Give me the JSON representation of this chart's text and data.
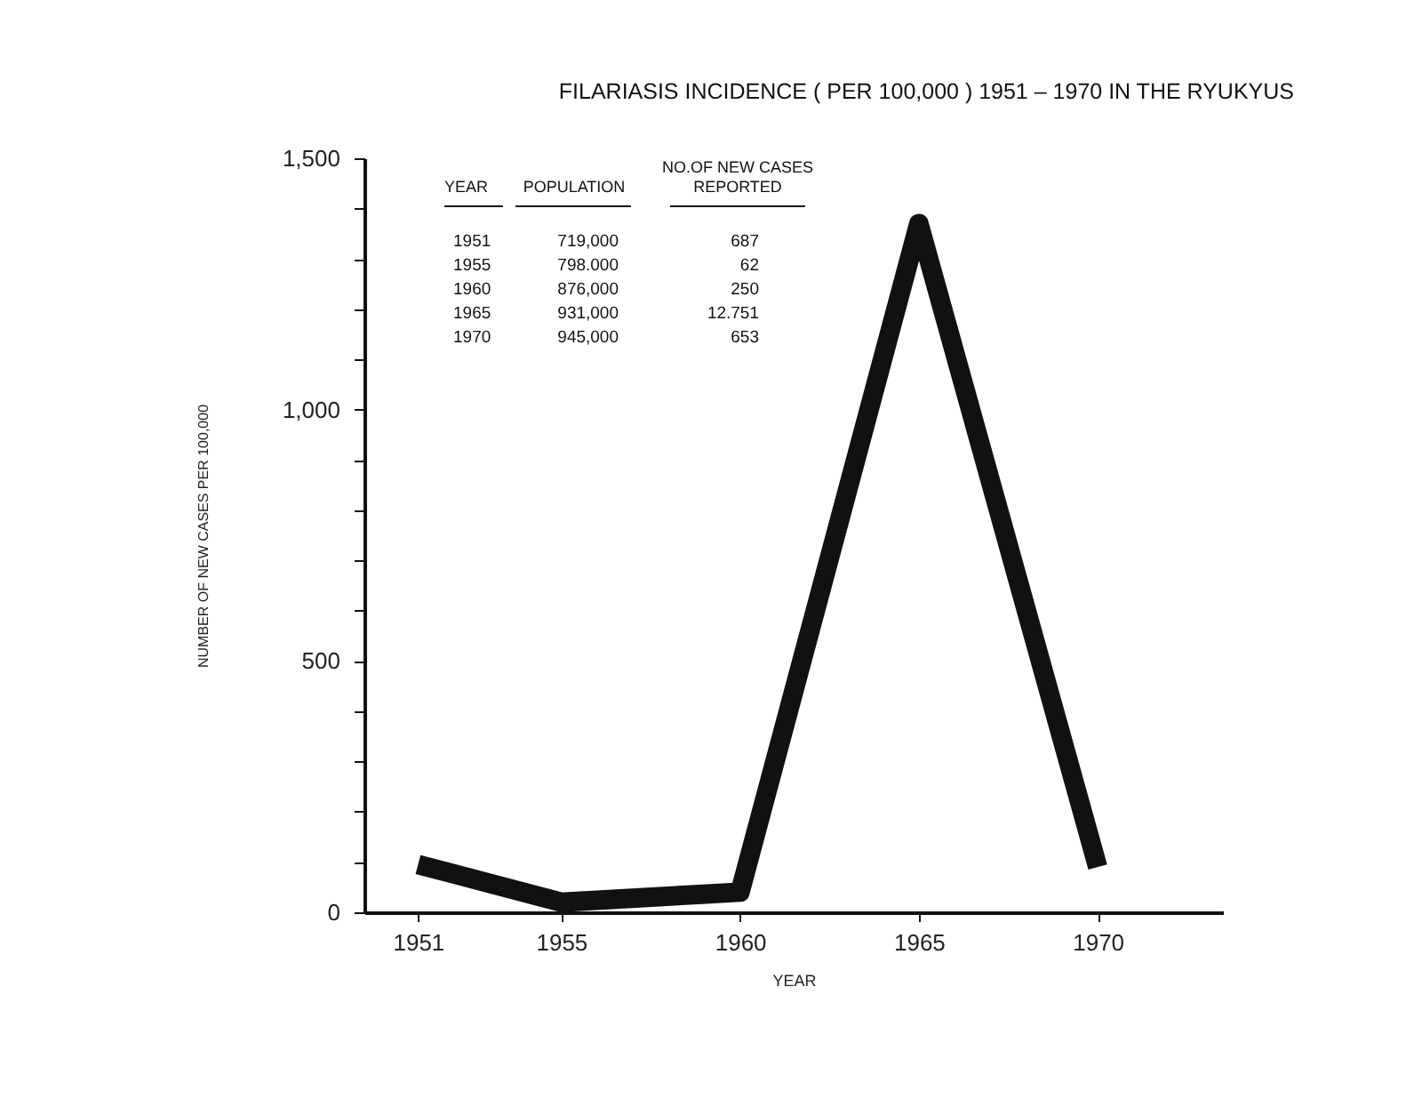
{
  "chart_data": {
    "type": "line",
    "title": "FILARIASIS INCIDENCE ( PER 100,000 ) 1951 – 1970 IN THE RYUKYUS",
    "xlabel": "YEAR",
    "ylabel": "NUMBER OF NEW CASES PER 100,000",
    "x": [
      1951,
      1955,
      1960,
      1965,
      1970
    ],
    "series": [
      {
        "color": "#111111",
        "values": [
          95,
          20,
          40,
          1370,
          90
        ]
      }
    ],
    "xlim": [
      1949.5,
      1973.5
    ],
    "xticks": [
      1951,
      1955,
      1960,
      1965,
      1970
    ],
    "ylim": [
      0,
      1500
    ],
    "yticks": [
      {
        "value": 0,
        "label": "0"
      },
      {
        "value": 100,
        "label": null
      },
      {
        "value": 200,
        "label": null
      },
      {
        "value": 300,
        "label": null
      },
      {
        "value": 400,
        "label": null
      },
      {
        "value": 500,
        "label": "500"
      },
      {
        "value": 600,
        "label": null
      },
      {
        "value": 700,
        "label": null
      },
      {
        "value": 800,
        "label": null
      },
      {
        "value": 900,
        "label": null
      },
      {
        "value": 1000,
        "label": "1,000"
      },
      {
        "value": 1100,
        "label": null
      },
      {
        "value": 1200,
        "label": null
      },
      {
        "value": 1300,
        "label": null
      },
      {
        "value": 1400,
        "label": null
      },
      {
        "value": 1500,
        "label": "1,500"
      }
    ],
    "annotations": [
      "YEAR",
      "POPULATION",
      "NO.OF NEW CASES REPORTED",
      "1951",
      "719,000",
      "687",
      "1955",
      "798.000",
      "62",
      "1960",
      "876,000",
      "250",
      "1965",
      "931,000",
      "12.751",
      "1970",
      "945,000",
      "653"
    ],
    "grid": false,
    "marker": "none",
    "line_style": "solid"
  }
}
